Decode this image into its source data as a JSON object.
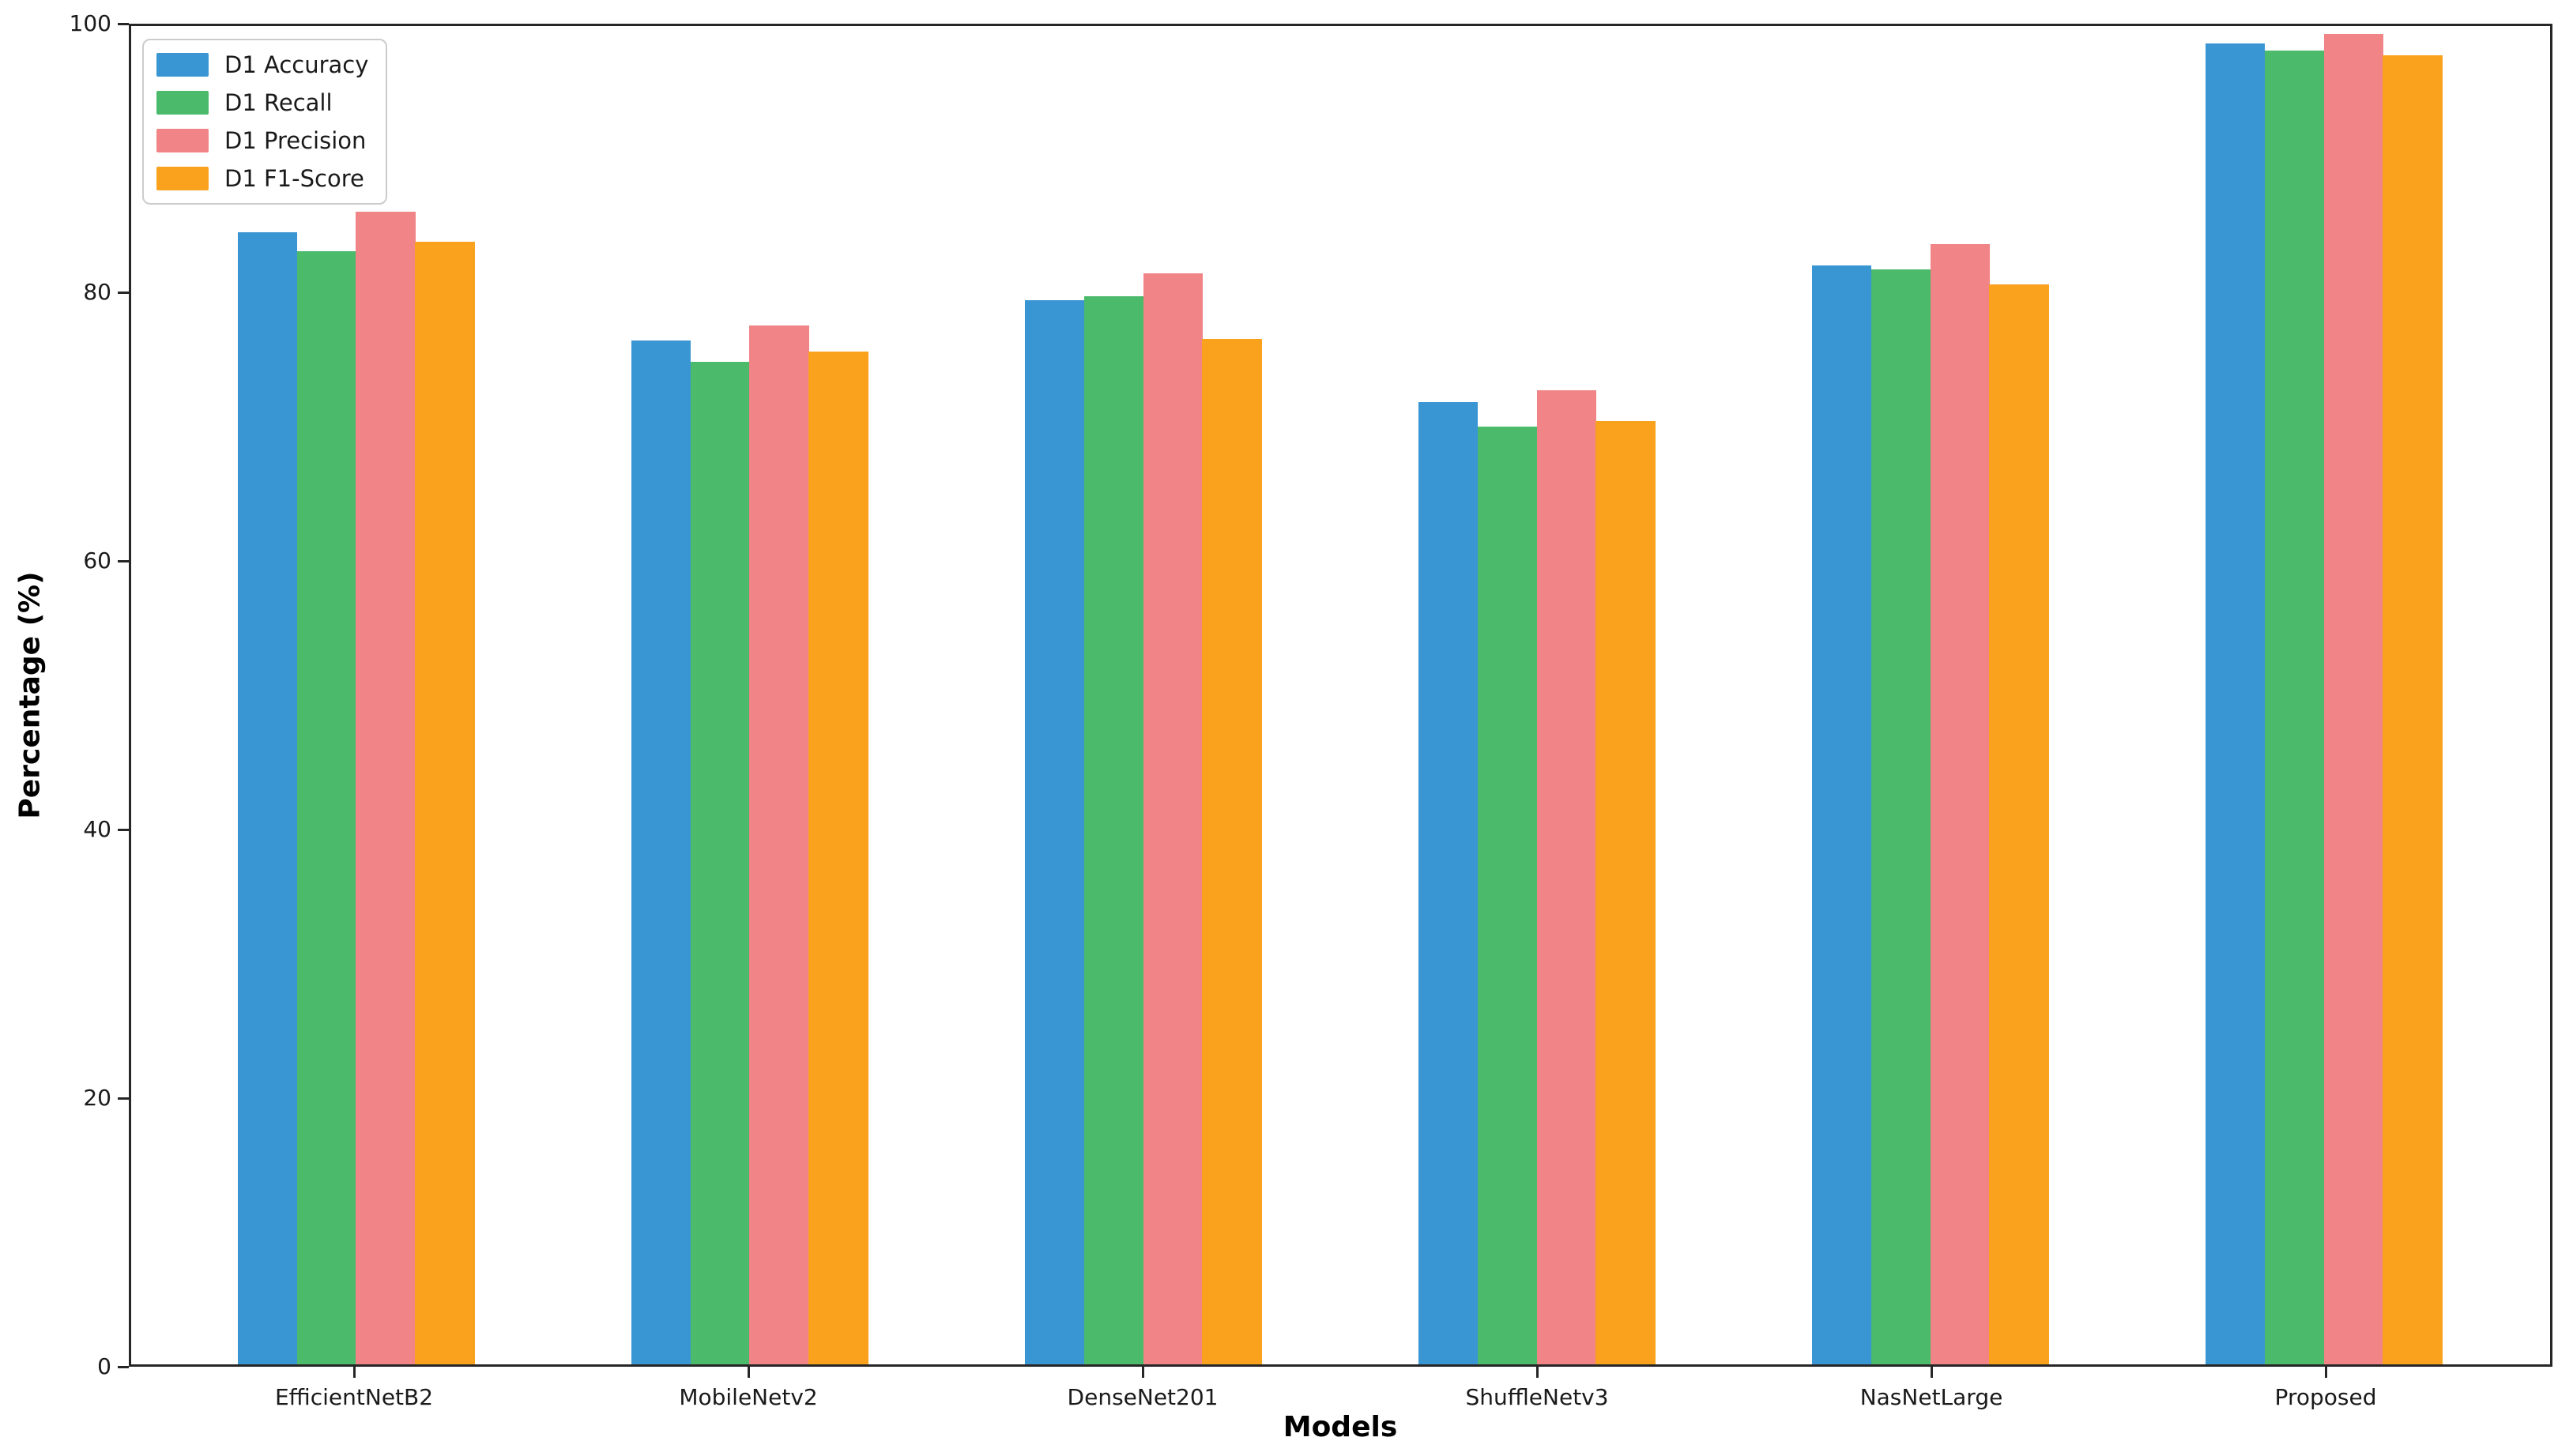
{
  "chart_data": {
    "type": "bar",
    "title": "",
    "xlabel": "Models",
    "ylabel": "Percentage (%)",
    "ylim": [
      0,
      100
    ],
    "yticks": [
      0,
      20,
      40,
      60,
      80,
      100
    ],
    "grid": false,
    "legend_position": "upper-left",
    "categories": [
      "EfficientNetB2",
      "MobileNetv2",
      "DenseNet201",
      "ShuffleNetv3",
      "NasNetLarge",
      "Proposed"
    ],
    "series": [
      {
        "name": "D1 Accuracy",
        "color": "#3A96D2",
        "values": [
          84.6,
          76.5,
          79.5,
          71.9,
          82.1,
          98.7
        ]
      },
      {
        "name": "D1 Recall",
        "color": "#4BBA6B",
        "values": [
          83.2,
          74.9,
          79.8,
          70.1,
          81.8,
          98.2
        ]
      },
      {
        "name": "D1 Precision",
        "color": "#F08486",
        "values": [
          86.1,
          77.6,
          81.5,
          72.8,
          83.7,
          99.4
        ]
      },
      {
        "name": "D1 F1-Score",
        "color": "#FAA21E",
        "values": [
          83.9,
          75.7,
          76.6,
          70.5,
          80.7,
          97.8
        ]
      }
    ]
  }
}
